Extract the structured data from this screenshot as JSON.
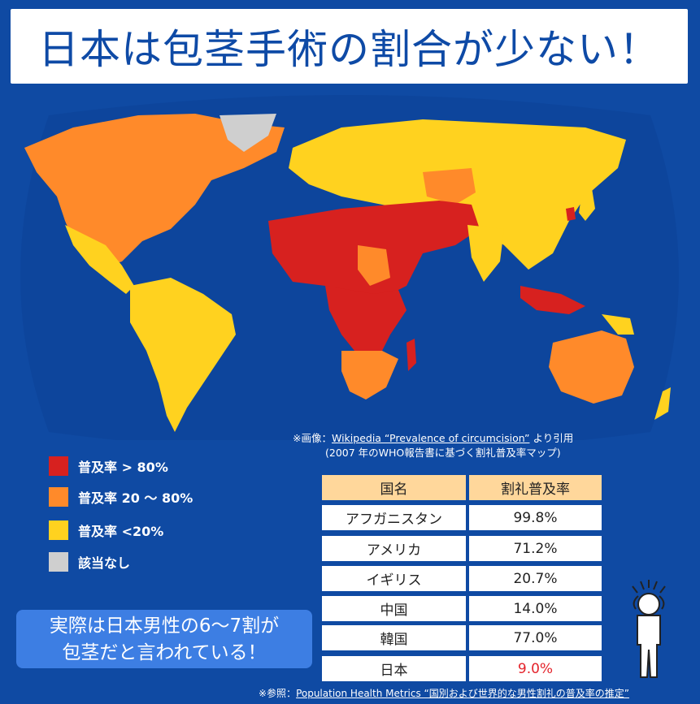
{
  "title": "日本は包茎手術の割合が少ない！",
  "image_credit": {
    "prefix": "※画像：",
    "link_text": "Wikipedia “Prevalence of circumcision”",
    "suffix": "より引用",
    "line2": "(2007 年のWHO報告書に基づく割礼普及率マップ)"
  },
  "legend": [
    {
      "label": "普及率 > 80%",
      "color": "#d7211f"
    },
    {
      "label": "普及率 20 〜 80%",
      "color": "#ff8a2a"
    },
    {
      "label": "普及率 <20%",
      "color": "#ffd21f"
    },
    {
      "label": "該当なし",
      "color": "#cfcfcf"
    }
  ],
  "callout": {
    "line1": "実際は日本男性の6〜7割が",
    "line2": "包茎だと言われている！"
  },
  "table": {
    "headers": [
      "国名",
      "割礼普及率"
    ],
    "rows": [
      {
        "country": "アフガニスタン",
        "rate": "99.8%"
      },
      {
        "country": "アメリカ",
        "rate": "71.2%"
      },
      {
        "country": "イギリス",
        "rate": "20.7%"
      },
      {
        "country": "中国",
        "rate": "14.0%"
      },
      {
        "country": "韓国",
        "rate": "77.0%"
      },
      {
        "country": "日本",
        "rate": "9.0%",
        "highlight_color": "#e4232b"
      }
    ]
  },
  "source": {
    "prefix": "※参照：",
    "link_text": "Population Health Metrics “国別および世界的な男性割礼の普及率の推定”"
  },
  "colors": {
    "background": "#0f4aa3",
    "title_text": "#0e4aa6",
    "header_cell": "#ffd79b",
    "callout": "#3d7ee3"
  }
}
